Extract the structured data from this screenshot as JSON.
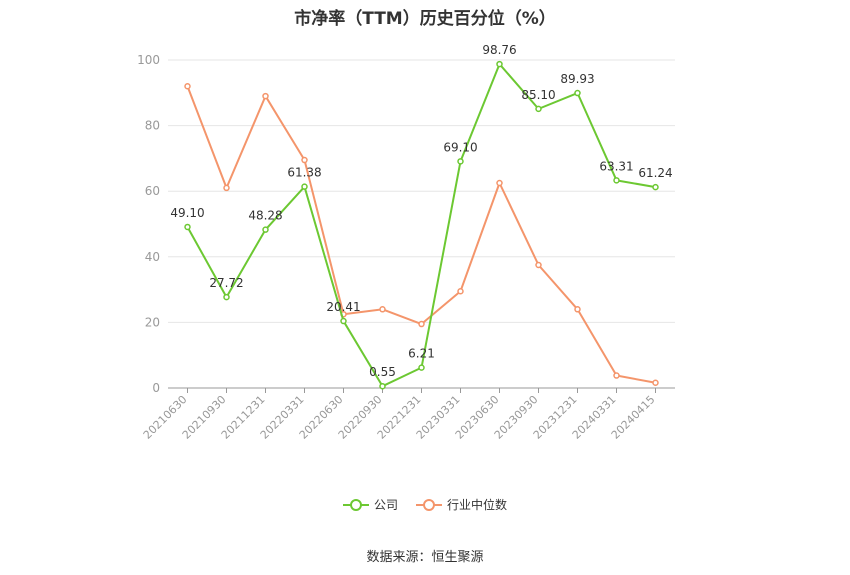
{
  "chart_data": {
    "type": "line",
    "title": "市净率（TTM）历史百分位（%）",
    "categories": [
      "20210630",
      "20210930",
      "20211231",
      "20220331",
      "20220630",
      "20220930",
      "20221231",
      "20230331",
      "20230630",
      "20230930",
      "20231231",
      "20240331",
      "20240415"
    ],
    "series": [
      {
        "name": "公司",
        "color": "#6cc832",
        "values": [
          49.1,
          27.72,
          48.28,
          61.38,
          20.41,
          0.55,
          6.21,
          69.1,
          98.76,
          85.1,
          89.93,
          63.31,
          61.24
        ],
        "labels": [
          "49.10",
          "27.72",
          "48.28",
          "61.38",
          "20.41",
          "0.55",
          "6.21",
          "69.10",
          "98.76",
          "85.10",
          "89.93",
          "63.31",
          "61.24"
        ]
      },
      {
        "name": "行业中位数",
        "color": "#f4956b",
        "values": [
          92.0,
          61.0,
          89.0,
          69.5,
          22.5,
          24.0,
          19.5,
          29.5,
          62.5,
          37.5,
          24.0,
          3.8,
          1.6
        ]
      }
    ],
    "yticks": [
      0,
      20,
      40,
      60,
      80,
      100
    ],
    "ylim": [
      0,
      100
    ],
    "grid": true,
    "legend_position": "bottom"
  },
  "source": "数据来源：恒生聚源"
}
